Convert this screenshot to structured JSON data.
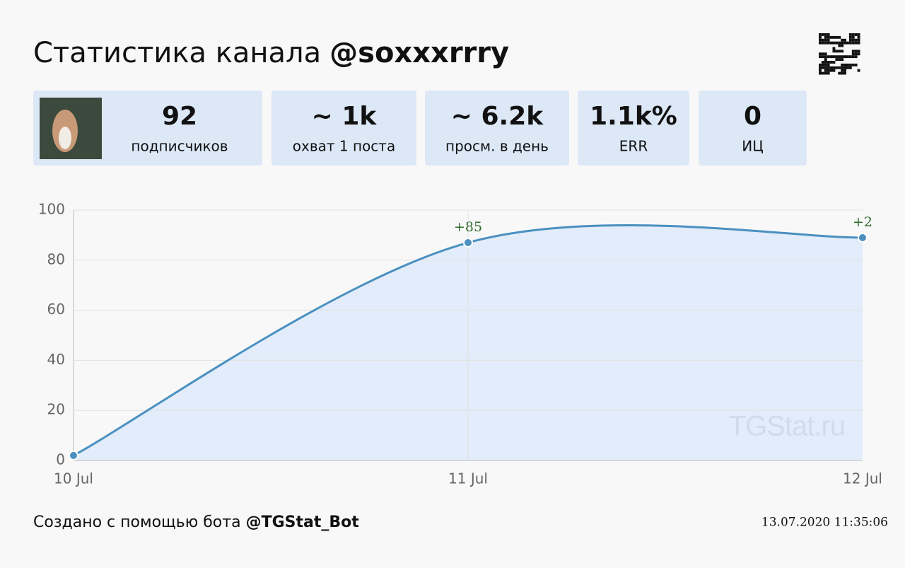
{
  "header": {
    "title_prefix": "Статистика канала",
    "channel": "@soxxxrrry"
  },
  "stats": [
    {
      "value": "92",
      "label": "подписчиков"
    },
    {
      "value": "~ 1k",
      "label": "охват 1 поста"
    },
    {
      "value": "~ 6.2k",
      "label": "просм. в день"
    },
    {
      "value": "1.1k%",
      "label": "ERR"
    },
    {
      "value": "0",
      "label": "ИЦ"
    }
  ],
  "chart_data": {
    "type": "line",
    "categories": [
      "10 Jul",
      "11 Jul",
      "12 Jul"
    ],
    "values": [
      2,
      87,
      89
    ],
    "point_labels": [
      null,
      "+85",
      "+2"
    ],
    "color": "#4a90c0",
    "fill": "#dfeaf9",
    "ylim": [
      0,
      100
    ],
    "yticks": [
      0,
      20,
      40,
      60,
      80,
      100
    ],
    "grid": true,
    "watermark": "TGStat.ru"
  },
  "footer": {
    "prefix": "Создано с помощью бота",
    "bot": "@TGStat_Bot",
    "timestamp": "13.07.2020 11:35:06"
  }
}
